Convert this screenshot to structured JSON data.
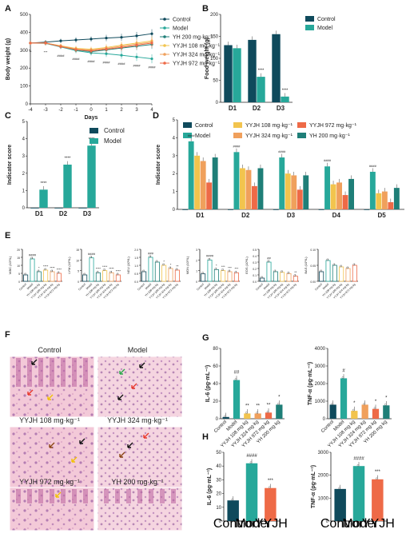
{
  "panel_letters": [
    "A",
    "B",
    "C",
    "D",
    "E",
    "F",
    "G",
    "H"
  ],
  "colors": {
    "dark": "#0f4a5c",
    "teal": "#27a89a",
    "yh": "#1f7f78",
    "y108": "#f2c44e",
    "y324": "#f0a05c",
    "y972": "#ee6a47"
  },
  "chart_data": [
    {
      "id": "A",
      "type": "line",
      "xlabel": "Days",
      "ylabel": "Body weight (g)",
      "x": [
        -4,
        -3,
        -2,
        -1,
        0,
        1,
        2,
        3,
        4
      ],
      "xticks": [
        "-4",
        "-3",
        "-2",
        "-1",
        "0",
        "1",
        "2",
        "3",
        "4"
      ],
      "ylim": [
        0,
        500
      ],
      "yticks": [
        "0",
        "100",
        "200",
        "300",
        "400",
        "500"
      ],
      "series": [
        {
          "name": "Control",
          "color": "#0f4a5c",
          "values": [
            340,
            345,
            352,
            357,
            362,
            368,
            372,
            380,
            392
          ],
          "err": [
            10,
            12,
            12,
            15,
            15,
            18,
            20,
            22,
            25
          ]
        },
        {
          "name": "Model",
          "color": "#27a89a",
          "values": [
            340,
            338,
            318,
            298,
            285,
            280,
            272,
            262,
            252
          ],
          "err": [
            10,
            12,
            12,
            15,
            15,
            18,
            20,
            22,
            25
          ]
        },
        {
          "name": "YH 200 mg·kg⁻¹",
          "color": "#1f7f78",
          "values": [
            340,
            340,
            322,
            302,
            292,
            302,
            312,
            322,
            332
          ],
          "err": [
            10,
            12,
            12,
            15,
            15,
            18,
            20,
            22,
            25
          ]
        },
        {
          "name": "YYJH 108 mg·kg⁻¹",
          "color": "#f2c44e",
          "values": [
            340,
            340,
            325,
            310,
            305,
            315,
            328,
            340,
            352
          ],
          "err": [
            10,
            12,
            12,
            15,
            15,
            18,
            20,
            22,
            25
          ]
        },
        {
          "name": "YYJH 324 mg·kg⁻¹",
          "color": "#f0a05c",
          "values": [
            340,
            340,
            323,
            306,
            300,
            310,
            322,
            334,
            345
          ],
          "err": [
            10,
            12,
            12,
            15,
            15,
            18,
            20,
            22,
            25
          ]
        },
        {
          "name": "YYJH 972 mg·kg⁻¹",
          "color": "#ee6a47",
          "values": [
            340,
            340,
            320,
            303,
            296,
            306,
            316,
            328,
            340
          ],
          "err": [
            10,
            12,
            12,
            15,
            15,
            18,
            20,
            22,
            25
          ]
        }
      ],
      "annotations": [
        "**",
        "***",
        "####",
        "####",
        "####",
        "####",
        "####",
        "####",
        "####"
      ]
    },
    {
      "id": "B",
      "type": "bar",
      "ylabel": "Food weight (g)",
      "categories": [
        "D1",
        "D2",
        "D3"
      ],
      "ylim": [
        0,
        200
      ],
      "yticks": [
        "0",
        "50",
        "100",
        "150",
        "200"
      ],
      "series": [
        {
          "name": "Control",
          "color": "#0f4a5c",
          "values": [
            130,
            142,
            155
          ]
        },
        {
          "name": "Model",
          "color": "#27a89a",
          "values": [
            123,
            58,
            13
          ]
        }
      ],
      "sig": [
        "",
        "****",
        "****"
      ]
    },
    {
      "id": "C",
      "type": "bar",
      "ylabel": "Indicator score",
      "categories": [
        "D1",
        "D2",
        "D3"
      ],
      "ylim": [
        0,
        5
      ],
      "yticks": [
        "0",
        "1",
        "2",
        "3",
        "4",
        "5"
      ],
      "series": [
        {
          "name": "Control",
          "color": "#0f4a5c",
          "values": [
            0,
            0,
            0
          ]
        },
        {
          "name": "Model",
          "color": "#27a89a",
          "values": [
            1.05,
            2.5,
            3.6
          ]
        }
      ],
      "sig": [
        "****",
        "****",
        "****"
      ]
    },
    {
      "id": "D",
      "type": "bar",
      "ylabel": "Indicator score",
      "categories": [
        "D1",
        "D2",
        "D3",
        "D4",
        "D5"
      ],
      "ylim": [
        0,
        5
      ],
      "yticks": [
        "0",
        "1",
        "2",
        "3",
        "4",
        "5"
      ],
      "series": [
        {
          "name": "Control",
          "color": "#0f4a5c",
          "values": [
            0,
            0,
            0,
            0,
            0
          ]
        },
        {
          "name": "Model",
          "color": "#27a89a",
          "values": [
            3.8,
            3.2,
            2.9,
            2.4,
            2.1
          ]
        },
        {
          "name": "YYJH 108 mg·kg⁻¹",
          "color": "#f2c44e",
          "values": [
            3.0,
            2.3,
            2.0,
            1.4,
            0.9
          ]
        },
        {
          "name": "YYJH 324 mg·kg⁻¹",
          "color": "#f0a05c",
          "values": [
            2.7,
            2.2,
            1.9,
            1.5,
            1.0
          ]
        },
        {
          "name": "YYJH 972 mg·kg⁻¹",
          "color": "#ee6a47",
          "values": [
            1.5,
            1.3,
            1.1,
            0.8,
            0.4
          ]
        },
        {
          "name": "YH 200 mg·kg⁻¹",
          "color": "#1f7f78",
          "values": [
            2.9,
            2.3,
            1.9,
            1.7,
            1.2
          ]
        }
      ],
      "sig_model": "####",
      "legend_order": [
        "Control",
        "Model",
        "YYJH 108 mg·kg⁻¹",
        "YYJH 324 mg·kg⁻¹",
        "YYJH 972 mg·kg⁻¹",
        "YH 200 mg·kg⁻¹"
      ]
    },
    {
      "id": "E",
      "type": "bar",
      "groups": [
        "Control",
        "Model",
        "YH 200 mg·kg",
        "YYJH 108 mg·kg",
        "YYJH 324 mg·kg",
        "YYJH 972 mg·kg"
      ],
      "subplots": [
        {
          "ylabel": "WBC (10⁹/L)",
          "values": [
            4,
            14,
            6,
            7,
            6,
            5
          ],
          "ymax": 20,
          "yticks": [
            "0",
            "5",
            "10",
            "15",
            "20"
          ],
          "sig_model": "####",
          "sig_treat": [
            "*",
            "****",
            "****",
            "****"
          ]
        },
        {
          "ylabel": "LYM (10⁹/L)",
          "values": [
            3,
            11,
            4,
            5,
            4,
            3
          ],
          "ymax": 15,
          "yticks": [
            "0",
            "5",
            "10",
            "15"
          ],
          "sig_model": "####",
          "sig_treat": [
            "****",
            "****",
            "****",
            "****"
          ]
        },
        {
          "ylabel": "NEU (10⁹/L)",
          "values": [
            0.6,
            1.5,
            1.2,
            1.0,
            0.8,
            0.7
          ],
          "ymax": 2.0,
          "yticks": [
            "0.0",
            "0.5",
            "1.0",
            "1.5",
            "2.0"
          ],
          "sig_model": "###",
          "sig_treat": [
            "",
            "*",
            "*",
            "**"
          ]
        },
        {
          "ylabel": "MON (10⁹/L)",
          "values": [
            0.7,
            2.0,
            1.1,
            1.0,
            0.9,
            0.8
          ],
          "ymax": 3,
          "yticks": [
            "0",
            "1",
            "2",
            "3"
          ],
          "sig_model": "####",
          "sig_treat": [
            "*",
            "***",
            "***",
            "***"
          ]
        },
        {
          "ylabel": "EOS (10⁹/L)",
          "values": [
            0.05,
            0.3,
            0.15,
            0.14,
            0.12,
            0.08
          ],
          "ymax": 0.5,
          "yticks": [
            "0.0",
            "0.1",
            "0.2",
            "0.3",
            "0.4",
            "0.5"
          ],
          "sig_model": "##",
          "sig_treat": [
            "",
            "",
            "",
            "**"
          ]
        },
        {
          "ylabel": "BAS (10⁹/L)",
          "values": [
            0.03,
            0.065,
            0.05,
            0.045,
            0.04,
            0.05
          ],
          "ymax": 0.1,
          "yticks": [
            "0.00",
            "0.05",
            "0.10"
          ],
          "sig_model": "",
          "sig_treat": [
            "",
            "",
            "",
            ""
          ]
        }
      ]
    },
    {
      "id": "G",
      "type": "bar",
      "groups": [
        "Control",
        "Model",
        "YYJH 108 mg·kg",
        "YYJH 324 mg·kg",
        "YYJH 972 mg·kg",
        "YH 200 mg·kg"
      ],
      "subplots": [
        {
          "ylabel": "IL-6 (pg·mL⁻¹)",
          "values": [
            2,
            44,
            6,
            6,
            7,
            16
          ],
          "ymax": 80,
          "yticks": [
            "0",
            "20",
            "40",
            "60",
            "80"
          ],
          "sig": [
            "",
            "##",
            "**",
            "**",
            "**",
            "*"
          ]
        },
        {
          "ylabel": "TNF-α (pg·mL⁻¹)",
          "values": [
            800,
            2300,
            450,
            800,
            560,
            760
          ],
          "ymax": 4000,
          "yticks": [
            "0",
            "1000",
            "2000",
            "3000",
            "4000"
          ],
          "sig": [
            "",
            "#",
            "*",
            "",
            "*",
            "*"
          ]
        }
      ]
    },
    {
      "id": "H",
      "type": "bar",
      "groups": [
        "Control",
        "Model",
        "YYJH"
      ],
      "subplots": [
        {
          "ylabel": "IL-6 (pg·mL⁻¹)",
          "values": [
            15,
            42,
            24
          ],
          "ymax": 50,
          "yticks": [
            "0",
            "10",
            "20",
            "30",
            "40",
            "50"
          ],
          "sig": [
            "",
            "####",
            "***"
          ]
        },
        {
          "ylabel": "TNF-α (pg·mL⁻¹)",
          "values": [
            1400,
            2400,
            1820
          ],
          "ymax": 3000,
          "yticks": [
            "0",
            "1000",
            "2000",
            "3000"
          ],
          "sig": [
            "",
            "####",
            "***"
          ]
        }
      ]
    }
  ],
  "histology": {
    "captions": [
      "Control",
      "Model",
      "YYJH 108 mg·kg⁻¹",
      "YYJH 324 mg·kg⁻¹",
      "YYJH 972 mg·kg⁻¹",
      "YH 200 mg·kg⁻¹"
    ]
  }
}
